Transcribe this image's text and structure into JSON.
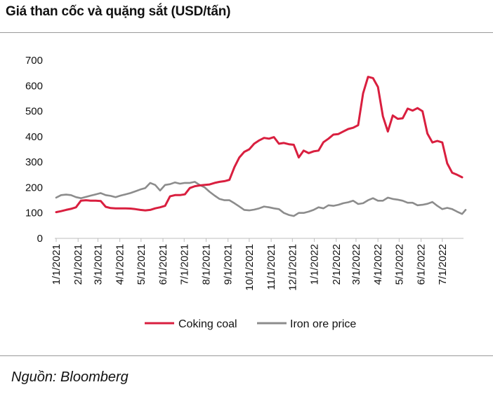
{
  "page": {
    "title": "Giá than cốc và quặng sắt (USD/tấn)",
    "source": "Nguồn: Bloomberg"
  },
  "chart_data": {
    "type": "line",
    "title": "Giá than cốc và quặng sắt (USD/tấn)",
    "xlabel": "",
    "ylabel": "",
    "ylim": [
      0,
      700
    ],
    "yticks": [
      "0",
      "100",
      "200",
      "300",
      "400",
      "500",
      "600",
      "700"
    ],
    "xticks": [
      "1/1/2021",
      "2/1/2021",
      "3/1/2021",
      "4/1/2021",
      "5/1/2021",
      "6/1/2021",
      "7/1/2021",
      "8/1/2021",
      "9/1/2021",
      "10/1/2021",
      "11/1/2021",
      "12/1/2021",
      "1/1/2022",
      "2/1/2022",
      "3/1/2022",
      "4/1/2022",
      "5/1/2022",
      "6/1/2022",
      "7/1/2022"
    ],
    "xlim": [
      "2021-01-01",
      "2022-07-31"
    ],
    "grid": false,
    "legend": "bottom-center",
    "series": [
      {
        "name": "Coking coal",
        "color": "#d91f3f",
        "points": [
          [
            "2021-01-01",
            103
          ],
          [
            "2021-01-08",
            107
          ],
          [
            "2021-01-15",
            112
          ],
          [
            "2021-01-22",
            116
          ],
          [
            "2021-01-29",
            122
          ],
          [
            "2021-02-05",
            148
          ],
          [
            "2021-02-12",
            150
          ],
          [
            "2021-02-19",
            148
          ],
          [
            "2021-02-26",
            148
          ],
          [
            "2021-03-05",
            147
          ],
          [
            "2021-03-12",
            124
          ],
          [
            "2021-03-19",
            119
          ],
          [
            "2021-03-26",
            118
          ],
          [
            "2021-04-02",
            118
          ],
          [
            "2021-04-09",
            118
          ],
          [
            "2021-04-16",
            117
          ],
          [
            "2021-04-23",
            115
          ],
          [
            "2021-04-30",
            112
          ],
          [
            "2021-05-07",
            110
          ],
          [
            "2021-05-14",
            112
          ],
          [
            "2021-05-21",
            118
          ],
          [
            "2021-05-28",
            122
          ],
          [
            "2021-06-04",
            128
          ],
          [
            "2021-06-11",
            165
          ],
          [
            "2021-06-18",
            170
          ],
          [
            "2021-06-25",
            170
          ],
          [
            "2021-07-02",
            173
          ],
          [
            "2021-07-09",
            198
          ],
          [
            "2021-07-16",
            205
          ],
          [
            "2021-07-23",
            208
          ],
          [
            "2021-07-30",
            210
          ],
          [
            "2021-08-06",
            212
          ],
          [
            "2021-08-13",
            218
          ],
          [
            "2021-08-20",
            222
          ],
          [
            "2021-08-27",
            225
          ],
          [
            "2021-09-03",
            230
          ],
          [
            "2021-09-10",
            280
          ],
          [
            "2021-09-17",
            318
          ],
          [
            "2021-09-24",
            340
          ],
          [
            "2021-10-01",
            350
          ],
          [
            "2021-10-08",
            372
          ],
          [
            "2021-10-15",
            385
          ],
          [
            "2021-10-22",
            395
          ],
          [
            "2021-10-29",
            392
          ],
          [
            "2021-11-05",
            398
          ],
          [
            "2021-11-12",
            372
          ],
          [
            "2021-11-19",
            375
          ],
          [
            "2021-11-26",
            370
          ],
          [
            "2021-12-03",
            368
          ],
          [
            "2021-12-10",
            318
          ],
          [
            "2021-12-17",
            345
          ],
          [
            "2021-12-24",
            335
          ],
          [
            "2021-12-31",
            342
          ],
          [
            "2022-01-07",
            345
          ],
          [
            "2022-01-14",
            378
          ],
          [
            "2022-01-21",
            392
          ],
          [
            "2022-01-28",
            408
          ],
          [
            "2022-02-04",
            410
          ],
          [
            "2022-02-11",
            420
          ],
          [
            "2022-02-18",
            430
          ],
          [
            "2022-02-25",
            435
          ],
          [
            "2022-03-04",
            445
          ],
          [
            "2022-03-11",
            570
          ],
          [
            "2022-03-18",
            635
          ],
          [
            "2022-03-25",
            630
          ],
          [
            "2022-04-01",
            595
          ],
          [
            "2022-04-08",
            480
          ],
          [
            "2022-04-15",
            420
          ],
          [
            "2022-04-22",
            483
          ],
          [
            "2022-04-29",
            470
          ],
          [
            "2022-05-06",
            472
          ],
          [
            "2022-05-13",
            510
          ],
          [
            "2022-05-20",
            502
          ],
          [
            "2022-05-27",
            512
          ],
          [
            "2022-06-03",
            500
          ],
          [
            "2022-06-10",
            412
          ],
          [
            "2022-06-17",
            377
          ],
          [
            "2022-06-24",
            383
          ],
          [
            "2022-07-01",
            377
          ],
          [
            "2022-07-08",
            295
          ],
          [
            "2022-07-15",
            258
          ],
          [
            "2022-07-22",
            250
          ],
          [
            "2022-07-29",
            240
          ]
        ]
      },
      {
        "name": "Iron ore price",
        "color": "#8c8c8c",
        "points": [
          [
            "2021-01-01",
            160
          ],
          [
            "2021-01-08",
            170
          ],
          [
            "2021-01-15",
            172
          ],
          [
            "2021-01-22",
            170
          ],
          [
            "2021-01-29",
            162
          ],
          [
            "2021-02-05",
            158
          ],
          [
            "2021-02-12",
            163
          ],
          [
            "2021-02-19",
            168
          ],
          [
            "2021-02-26",
            173
          ],
          [
            "2021-03-05",
            178
          ],
          [
            "2021-03-12",
            170
          ],
          [
            "2021-03-19",
            167
          ],
          [
            "2021-03-26",
            162
          ],
          [
            "2021-04-02",
            168
          ],
          [
            "2021-04-09",
            173
          ],
          [
            "2021-04-16",
            178
          ],
          [
            "2021-04-23",
            185
          ],
          [
            "2021-04-30",
            192
          ],
          [
            "2021-05-07",
            198
          ],
          [
            "2021-05-14",
            218
          ],
          [
            "2021-05-21",
            210
          ],
          [
            "2021-05-28",
            188
          ],
          [
            "2021-06-04",
            210
          ],
          [
            "2021-06-11",
            213
          ],
          [
            "2021-06-18",
            220
          ],
          [
            "2021-06-25",
            215
          ],
          [
            "2021-07-02",
            218
          ],
          [
            "2021-07-09",
            218
          ],
          [
            "2021-07-16",
            222
          ],
          [
            "2021-07-23",
            210
          ],
          [
            "2021-07-30",
            200
          ],
          [
            "2021-08-06",
            183
          ],
          [
            "2021-08-13",
            168
          ],
          [
            "2021-08-20",
            155
          ],
          [
            "2021-08-27",
            150
          ],
          [
            "2021-09-03",
            150
          ],
          [
            "2021-09-10",
            138
          ],
          [
            "2021-09-17",
            125
          ],
          [
            "2021-09-24",
            112
          ],
          [
            "2021-10-01",
            110
          ],
          [
            "2021-10-08",
            113
          ],
          [
            "2021-10-15",
            118
          ],
          [
            "2021-10-22",
            125
          ],
          [
            "2021-10-29",
            122
          ],
          [
            "2021-11-05",
            118
          ],
          [
            "2021-11-12",
            115
          ],
          [
            "2021-11-19",
            100
          ],
          [
            "2021-11-26",
            92
          ],
          [
            "2021-12-03",
            88
          ],
          [
            "2021-12-10",
            100
          ],
          [
            "2021-12-17",
            100
          ],
          [
            "2021-12-24",
            105
          ],
          [
            "2021-12-31",
            112
          ],
          [
            "2022-01-07",
            122
          ],
          [
            "2022-01-14",
            118
          ],
          [
            "2022-01-21",
            130
          ],
          [
            "2022-01-28",
            128
          ],
          [
            "2022-02-04",
            132
          ],
          [
            "2022-02-11",
            138
          ],
          [
            "2022-02-18",
            142
          ],
          [
            "2022-02-25",
            148
          ],
          [
            "2022-03-04",
            135
          ],
          [
            "2022-03-11",
            138
          ],
          [
            "2022-03-18",
            150
          ],
          [
            "2022-03-25",
            158
          ],
          [
            "2022-04-01",
            148
          ],
          [
            "2022-04-08",
            148
          ],
          [
            "2022-04-15",
            160
          ],
          [
            "2022-04-22",
            155
          ],
          [
            "2022-04-29",
            152
          ],
          [
            "2022-05-06",
            148
          ],
          [
            "2022-05-13",
            140
          ],
          [
            "2022-05-20",
            140
          ],
          [
            "2022-05-27",
            130
          ],
          [
            "2022-06-03",
            132
          ],
          [
            "2022-06-10",
            136
          ],
          [
            "2022-06-17",
            143
          ],
          [
            "2022-06-24",
            128
          ],
          [
            "2022-07-01",
            115
          ],
          [
            "2022-07-08",
            120
          ],
          [
            "2022-07-15",
            115
          ],
          [
            "2022-07-22",
            105
          ],
          [
            "2022-07-29",
            96
          ],
          [
            "2022-08-03",
            112
          ]
        ]
      }
    ]
  }
}
